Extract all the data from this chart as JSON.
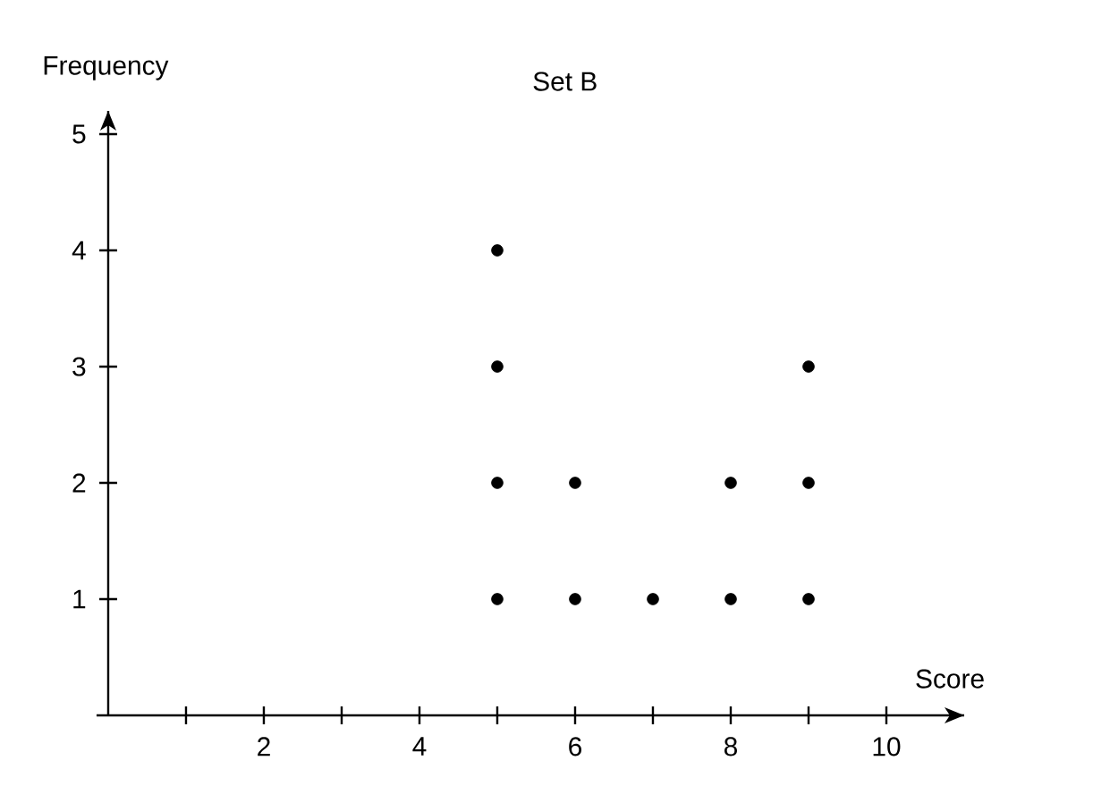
{
  "chart_data": {
    "type": "scatter",
    "title": "Set B",
    "xlabel": "Score",
    "ylabel": "Frequency",
    "x": [
      5,
      5,
      5,
      5,
      6,
      6,
      7,
      8,
      8,
      9,
      9,
      9
    ],
    "values": [
      1,
      2,
      3,
      4,
      1,
      2,
      1,
      1,
      2,
      1,
      2,
      3
    ],
    "color": "#000000",
    "marker": "circle",
    "xlim": [
      -0.15,
      11
    ],
    "ylim": [
      0,
      5.2
    ],
    "xticks": [
      {
        "value": 1,
        "label": null
      },
      2,
      {
        "value": 3,
        "label": null
      },
      4,
      {
        "value": 5,
        "label": null
      },
      6,
      {
        "value": 7,
        "label": null
      },
      8,
      {
        "value": 9,
        "label": null
      },
      10
    ],
    "yticks": [
      1,
      2,
      3,
      4,
      5
    ]
  }
}
